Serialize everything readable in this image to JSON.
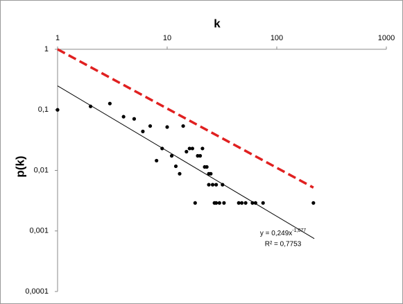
{
  "chart_data": {
    "type": "scatter",
    "xlabel": "k",
    "ylabel": "p(k)",
    "xscale": "log",
    "yscale": "log",
    "xlim": [
      1,
      1000
    ],
    "ylim": [
      0.0001,
      1
    ],
    "xticks": [
      1,
      10,
      100,
      1000
    ],
    "yticks": [
      1,
      {
        "value": 0.1,
        "label": "0,1"
      },
      {
        "value": 0.01,
        "label": "0,01"
      },
      {
        "value": 0.001,
        "label": "0,001"
      },
      {
        "value": 0.0001,
        "label": "0,0001"
      }
    ],
    "series": [
      {
        "type": "scatter",
        "color": "#000000",
        "x": [
          1,
          2,
          3,
          4,
          5,
          6,
          7,
          8,
          9,
          10,
          11,
          12,
          13,
          14,
          15,
          16,
          17,
          18,
          19,
          20,
          21,
          22,
          23,
          24,
          24,
          25,
          26,
          27,
          28,
          28,
          30,
          32,
          33,
          45,
          48,
          52,
          60,
          64,
          75,
          216
        ],
        "values": [
          0.1,
          0.114,
          0.127,
          0.077,
          0.071,
          0.044,
          0.054,
          0.0145,
          0.023,
          0.052,
          0.0174,
          0.0117,
          0.0088,
          0.054,
          0.0204,
          0.023,
          0.023,
          0.0029,
          0.0174,
          0.0174,
          0.023,
          0.0114,
          0.0114,
          0.0088,
          0.0058,
          0.0088,
          0.0058,
          0.0029,
          0.0058,
          0.0029,
          0.0029,
          0.0058,
          0.0029,
          0.0029,
          0.0029,
          0.0029,
          0.0029,
          0.0029,
          0.0029,
          0.0029
        ]
      },
      {
        "type": "line",
        "color": "#000000",
        "x": [
          1,
          220
        ],
        "values": [
          0.249,
          0.000747
        ]
      },
      {
        "type": "line",
        "dashed": true,
        "color": "#e02020",
        "x": [
          1,
          216
        ],
        "values": [
          1,
          0.0052
        ]
      }
    ],
    "trend_label": "y = 0,249x",
    "trend_exponent": "-1,077",
    "r2_label": "R² = 0,7753"
  }
}
